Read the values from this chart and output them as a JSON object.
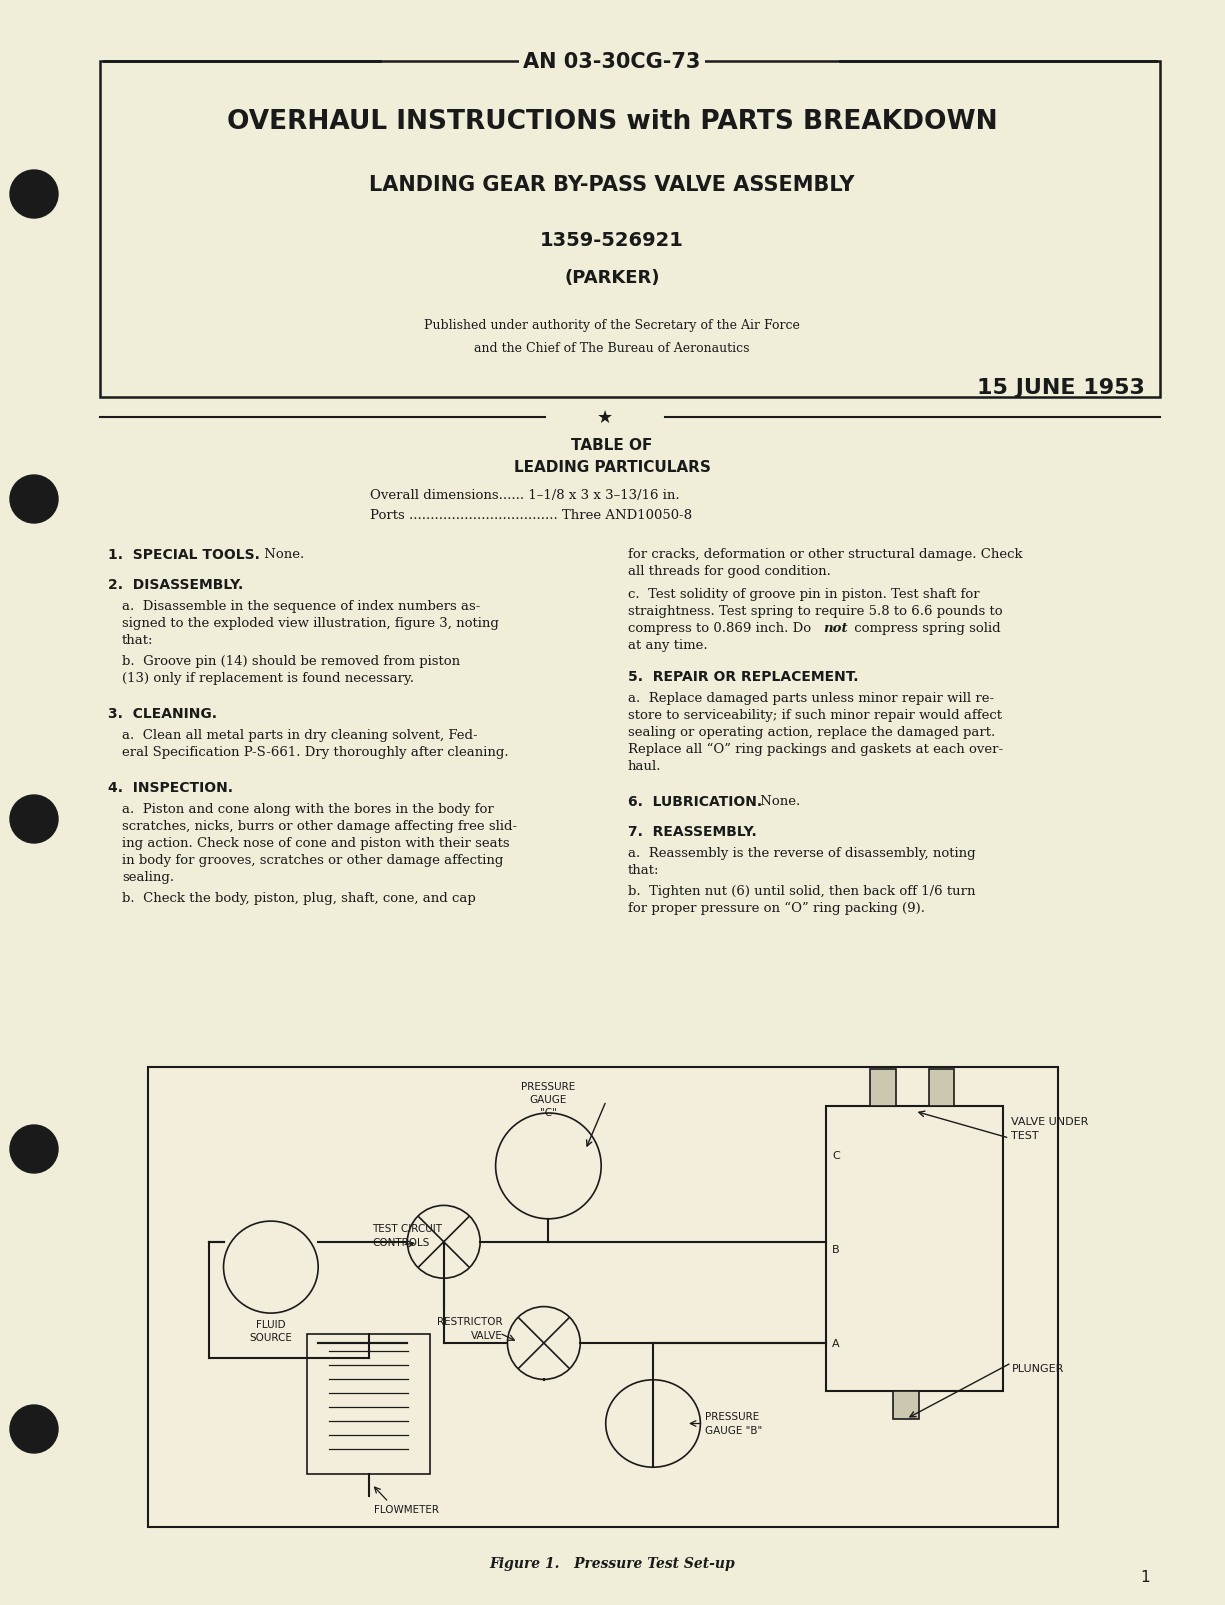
{
  "bg_color": "#f0edd8",
  "text_color": "#1a1a1a",
  "doc_number": "AN 03-30CG-73",
  "title1": "OVERHAUL INSTRUCTIONS with PARTS BREAKDOWN",
  "title2": "LANDING GEAR BY-PASS VALVE ASSEMBLY",
  "part_number": "1359-526921",
  "manufacturer": "(PARKER)",
  "published_line1": "Published under authority of the Secretary of the Air Force",
  "published_line2": "and the Chief of The Bureau of Aeronautics",
  "date": "15 JUNE 1953",
  "table_heading1": "TABLE OF",
  "table_heading2": "LEADING PARTICULARS",
  "dim_label": "Overall dimensions...... 1–1/8 x 3 x 3–13/16 in.",
  "ports_label": "Ports ................................... Three AND10050-8",
  "figure_caption": "Figure 1.   Pressure Test Set-up",
  "page_number": "1"
}
